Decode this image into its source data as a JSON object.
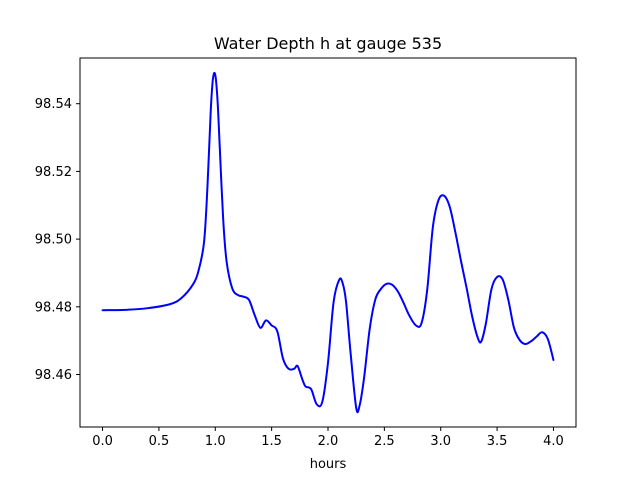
{
  "chart_data": {
    "type": "line",
    "title": "Water Depth h at gauge 535",
    "xlabel": "hours",
    "ylabel": "",
    "xlim": [
      -0.2,
      4.2
    ],
    "ylim": [
      98.4445,
      98.5535
    ],
    "xticks": [
      0.0,
      0.5,
      1.0,
      1.5,
      2.0,
      2.5,
      3.0,
      3.5,
      4.0
    ],
    "xtick_labels": [
      "0.0",
      "0.5",
      "1.0",
      "1.5",
      "2.0",
      "2.5",
      "3.0",
      "3.5",
      "4.0"
    ],
    "yticks": [
      98.46,
      98.48,
      98.5,
      98.52,
      98.54
    ],
    "ytick_labels": [
      "98.46",
      "98.48",
      "98.50",
      "98.52",
      "98.54"
    ],
    "grid": false,
    "series": [
      {
        "color": "#0000ff",
        "x": [
          0.0,
          0.2,
          0.4,
          0.6,
          0.7,
          0.8,
          0.85,
          0.9,
          0.93,
          0.96,
          0.98,
          1.0,
          1.02,
          1.04,
          1.07,
          1.1,
          1.15,
          1.2,
          1.25,
          1.3,
          1.35,
          1.4,
          1.45,
          1.5,
          1.55,
          1.6,
          1.65,
          1.7,
          1.73,
          1.77,
          1.8,
          1.85,
          1.9,
          1.95,
          2.0,
          2.05,
          2.1,
          2.13,
          2.16,
          2.2,
          2.25,
          2.28,
          2.32,
          2.37,
          2.42,
          2.47,
          2.52,
          2.57,
          2.62,
          2.67,
          2.72,
          2.78,
          2.83,
          2.88,
          2.93,
          2.98,
          3.03,
          3.08,
          3.13,
          3.18,
          3.23,
          3.28,
          3.33,
          3.36,
          3.4,
          3.45,
          3.5,
          3.55,
          3.6,
          3.65,
          3.7,
          3.75,
          3.8,
          3.85,
          3.9,
          3.95,
          4.0
        ],
        "y": [
          98.479,
          98.4791,
          98.4796,
          98.4808,
          98.4826,
          98.4865,
          98.4905,
          98.499,
          98.515,
          98.538,
          98.5475,
          98.5485,
          98.541,
          98.527,
          98.506,
          98.4935,
          98.4855,
          98.4835,
          98.483,
          98.482,
          98.4775,
          98.4738,
          98.476,
          98.4745,
          98.4728,
          98.4648,
          98.4617,
          98.4617,
          98.4625,
          98.4588,
          98.4565,
          98.4557,
          98.4512,
          98.452,
          98.4635,
          98.4815,
          98.488,
          98.487,
          98.4815,
          98.4665,
          98.4502,
          98.4508,
          98.459,
          98.4735,
          98.4822,
          98.4853,
          98.4868,
          98.4865,
          98.4845,
          98.4812,
          98.4775,
          98.4745,
          98.4752,
          98.485,
          98.5035,
          98.5115,
          98.5128,
          98.5095,
          98.502,
          98.4935,
          98.4855,
          98.477,
          98.4707,
          98.4698,
          98.475,
          98.4852,
          98.4888,
          98.488,
          98.482,
          98.4738,
          98.4702,
          98.469,
          98.4698,
          98.4712,
          98.4725,
          98.4705,
          98.4643
        ]
      }
    ]
  }
}
